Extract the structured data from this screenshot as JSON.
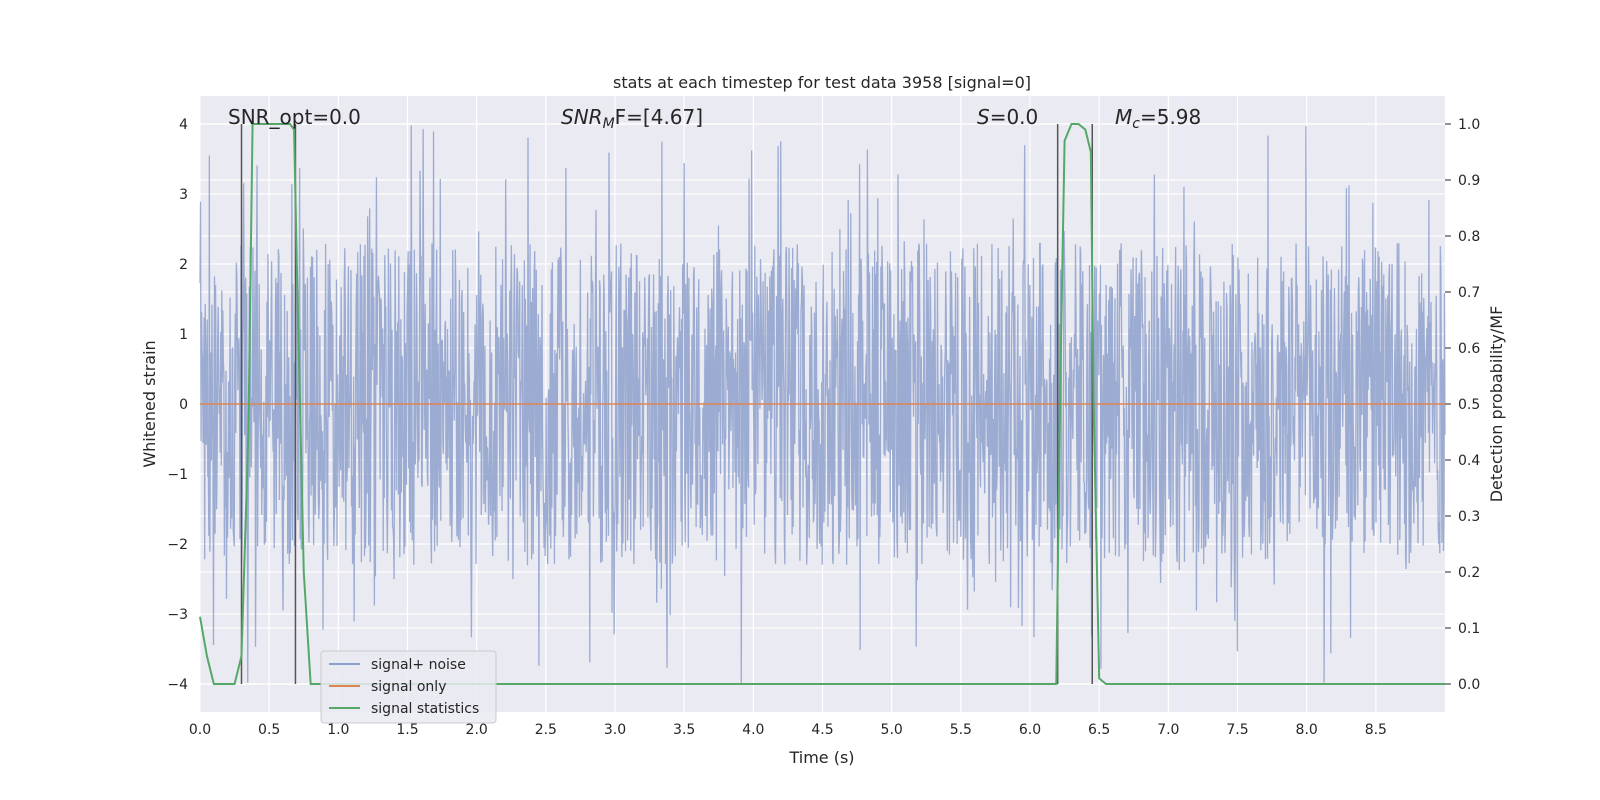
{
  "chart_data": {
    "type": "line",
    "title": "stats at each timestep for test data 3958 [signal=0]",
    "xlabel": "Time (s)",
    "ylabel": "Whitened strain",
    "y2label": "Detection probability/MF",
    "xlim": [
      0.0,
      9.0
    ],
    "ylim": [
      -4.4,
      4.4
    ],
    "y2lim": [
      -0.05,
      1.05
    ],
    "xticks": [
      "0.0",
      "0.5",
      "1.0",
      "1.5",
      "2.0",
      "2.5",
      "3.0",
      "3.5",
      "4.0",
      "4.5",
      "5.0",
      "5.5",
      "6.0",
      "6.5",
      "7.0",
      "7.5",
      "8.0",
      "8.5"
    ],
    "yticks": [
      "4",
      "3",
      "2",
      "1",
      "0",
      "−1",
      "−2",
      "−3",
      "−4"
    ],
    "y2ticks": [
      "1.0",
      "0.9",
      "0.8",
      "0.7",
      "0.6",
      "0.5",
      "0.4",
      "0.3",
      "0.2",
      "0.1",
      "0.0"
    ],
    "grid": true,
    "legend_position": "lower-left",
    "annotations": {
      "snr_opt": "SNR_opt=0.0",
      "snr_mf_prefix": "SNR",
      "snr_mf_sub": "M",
      "snr_mf_suffix": "F=[4.67]",
      "s_symbol": "S",
      "s_value": "=0.0",
      "mc_symbol": "M",
      "mc_sub": "c",
      "mc_value": "=5.98"
    },
    "series": [
      {
        "name": "signal+ noise",
        "color": "#8da0cb",
        "amplitude_typical": 2.3,
        "amplitude_peak": 4.0
      },
      {
        "name": "signal only",
        "color": "#dd8452",
        "values_constant": 0.0
      },
      {
        "name": "signal statistics",
        "color": "#55a868",
        "axis": "right",
        "x": [
          0.0,
          0.05,
          0.1,
          0.15,
          0.2,
          0.25,
          0.3,
          0.35,
          0.38,
          0.45,
          0.55,
          0.65,
          0.68,
          0.7,
          0.75,
          0.8,
          0.85,
          1.5,
          3.0,
          4.5,
          6.0,
          6.17,
          6.19,
          6.22,
          6.25,
          6.3,
          6.35,
          6.4,
          6.44,
          6.46,
          6.5,
          6.55,
          6.6,
          7.0,
          8.0,
          9.0
        ],
        "values": [
          0.12,
          0.05,
          0.0,
          0.0,
          0.0,
          0.0,
          0.05,
          0.45,
          1.0,
          1.0,
          1.0,
          1.0,
          0.99,
          0.75,
          0.2,
          0.0,
          0.0,
          0.0,
          0.0,
          0.0,
          0.0,
          0.0,
          0.0,
          0.55,
          0.97,
          1.0,
          1.0,
          0.99,
          0.95,
          0.5,
          0.01,
          0.0,
          0.0,
          0.0,
          0.0,
          0.0
        ]
      }
    ],
    "vertical_lines_x": [
      0.3,
      0.69,
      6.2,
      6.45
    ]
  }
}
